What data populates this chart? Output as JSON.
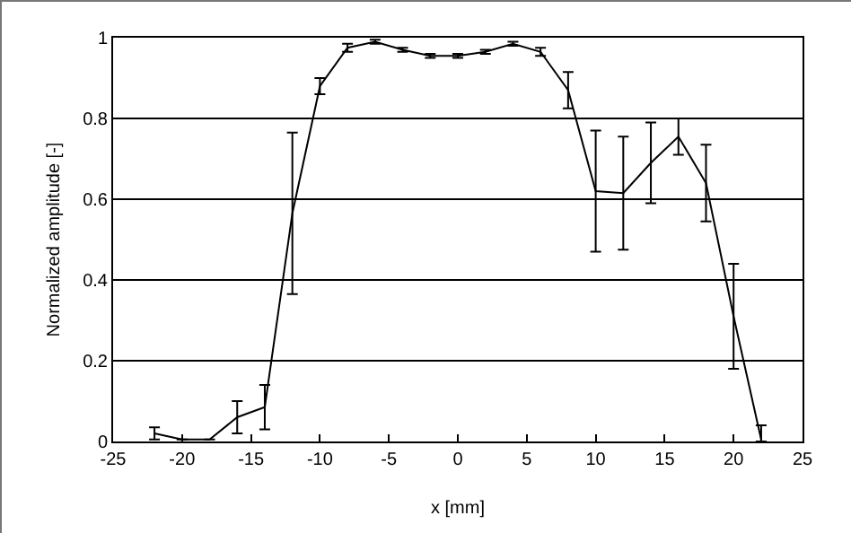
{
  "chart_data": {
    "type": "line",
    "xlabel": "x [mm]",
    "ylabel": "Normalized amplitude [-]",
    "x": [
      -22,
      -20,
      -18,
      -16,
      -14,
      -12,
      -10,
      -8,
      -6,
      -4,
      -2,
      0,
      2,
      4,
      6,
      8,
      10,
      12,
      14,
      16,
      18,
      20,
      22
    ],
    "values": [
      0.02,
      0.005,
      0.005,
      0.06,
      0.085,
      0.565,
      0.88,
      0.975,
      0.99,
      0.97,
      0.955,
      0.955,
      0.965,
      0.985,
      0.965,
      0.87,
      0.62,
      0.615,
      0.69,
      0.755,
      0.64,
      0.31,
      0.005
    ],
    "errors": [
      0.015,
      null,
      null,
      0.04,
      0.055,
      0.2,
      0.02,
      0.01,
      0.005,
      0.005,
      0.005,
      0.005,
      0.005,
      0.005,
      0.01,
      0.045,
      0.15,
      0.14,
      0.1,
      0.045,
      0.095,
      0.13,
      [
        0.005,
        0.035
      ]
    ],
    "color": "#000000",
    "marker": "none",
    "line_style": "solid",
    "xlim": [
      -25,
      25
    ],
    "xticks": [
      -25,
      -20,
      -15,
      -10,
      -5,
      0,
      5,
      10,
      15,
      20,
      25
    ],
    "ylim": [
      0,
      1
    ],
    "yticks": [
      0,
      0.2,
      0.4,
      0.6,
      0.8,
      1
    ],
    "grid": "y"
  }
}
